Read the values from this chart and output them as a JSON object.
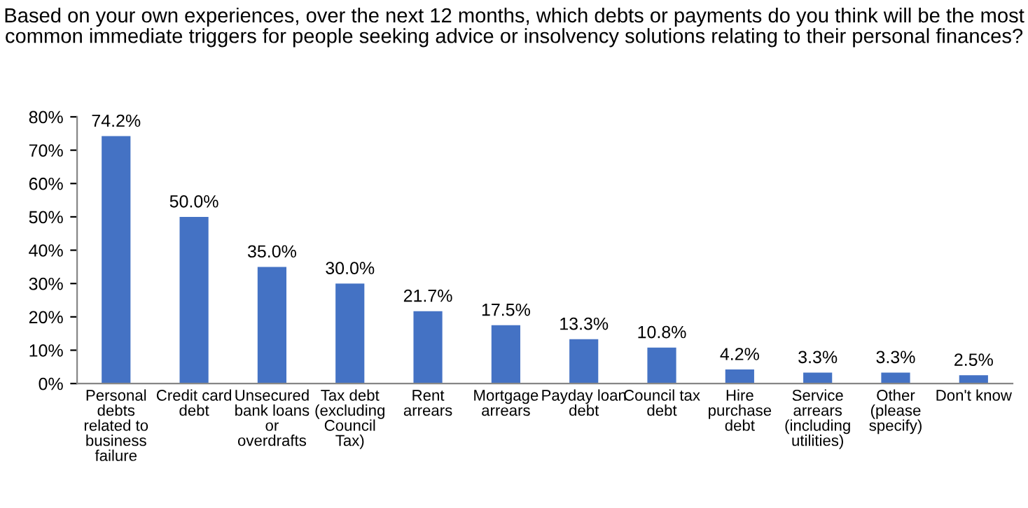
{
  "chart_data": {
    "type": "bar",
    "title": "Based on your own experiences, over the next 12 months, which debts or payments do you think will be the most common immediate triggers for people seeking advice or insolvency solutions relating to their personal finances?",
    "categories": [
      "Personal debts related to business failure",
      "Credit card debt",
      "Unsecured bank loans or overdrafts",
      "Tax debt (excluding Council Tax)",
      "Rent arrears",
      "Mortgage arrears",
      "Payday loan debt",
      "Council tax debt",
      "Hire purchase debt",
      "Service arrears (including utilities)",
      "Other (please specify)",
      "Don't know"
    ],
    "values": [
      74.2,
      50.0,
      35.0,
      30.0,
      21.7,
      17.5,
      13.3,
      10.8,
      4.2,
      3.3,
      3.3,
      2.5
    ],
    "value_labels": [
      "74.2%",
      "50.0%",
      "35.0%",
      "30.0%",
      "21.7%",
      "17.5%",
      "13.3%",
      "10.8%",
      "4.2%",
      "3.3%",
      "3.3%",
      "2.5%"
    ],
    "color": "#4472c4",
    "ylim": [
      0,
      80
    ],
    "yticks": [
      {
        "value": 0,
        "label": "0%"
      },
      {
        "value": 10,
        "label": "10%"
      },
      {
        "value": 20,
        "label": "20%"
      },
      {
        "value": 30,
        "label": "30%"
      },
      {
        "value": 40,
        "label": "40%"
      },
      {
        "value": 50,
        "label": "50%"
      },
      {
        "value": 60,
        "label": "60%"
      },
      {
        "value": 70,
        "label": "70%"
      },
      {
        "value": 80,
        "label": "80%"
      }
    ],
    "grid": false,
    "legend": false
  }
}
